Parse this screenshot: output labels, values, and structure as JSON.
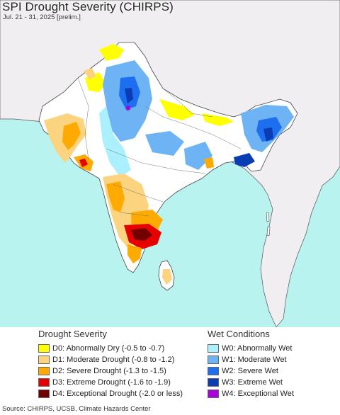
{
  "title": "SPI Drought Severity (CHIRPS)",
  "subtitle": "Jul. 21 - 31, 2025 [prelim.]",
  "source": "Source: CHIRPS, UCSB, Climate Hazards Center",
  "colors": {
    "ocean": "#b9f3ef",
    "outside_land": "#f0eef0",
    "inside_land": "#ffffff",
    "border": "#444444"
  },
  "legend": {
    "drought": {
      "heading": "Drought Severity",
      "items": [
        {
          "label": "D0: Abnormally Dry (-0.5 to -0.7)",
          "color": "#ffff00"
        },
        {
          "label": "D1: Moderate Drought (-0.8 to -1.2)",
          "color": "#fcd37f"
        },
        {
          "label": "D2: Severe Drought (-1.3 to -1.5)",
          "color": "#ffaa00"
        },
        {
          "label": "D3: Extreme Drought (-1.6 to -1.9)",
          "color": "#e60000"
        },
        {
          "label": "D4: Exceptional Drought (-2.0 or less)",
          "color": "#730000"
        }
      ]
    },
    "wet": {
      "heading": "Wet Conditions",
      "items": [
        {
          "label": "W0: Abnormally Wet",
          "color": "#aaf0ff"
        },
        {
          "label": "W1: Moderate Wet",
          "color": "#6eb4f5"
        },
        {
          "label": "W2: Severe Wet",
          "color": "#1e6ef0"
        },
        {
          "label": "W3: Extreme Wet",
          "color": "#0a3cb4"
        },
        {
          "label": "W4: Exceptional Wet",
          "color": "#aa00dc"
        }
      ]
    }
  }
}
